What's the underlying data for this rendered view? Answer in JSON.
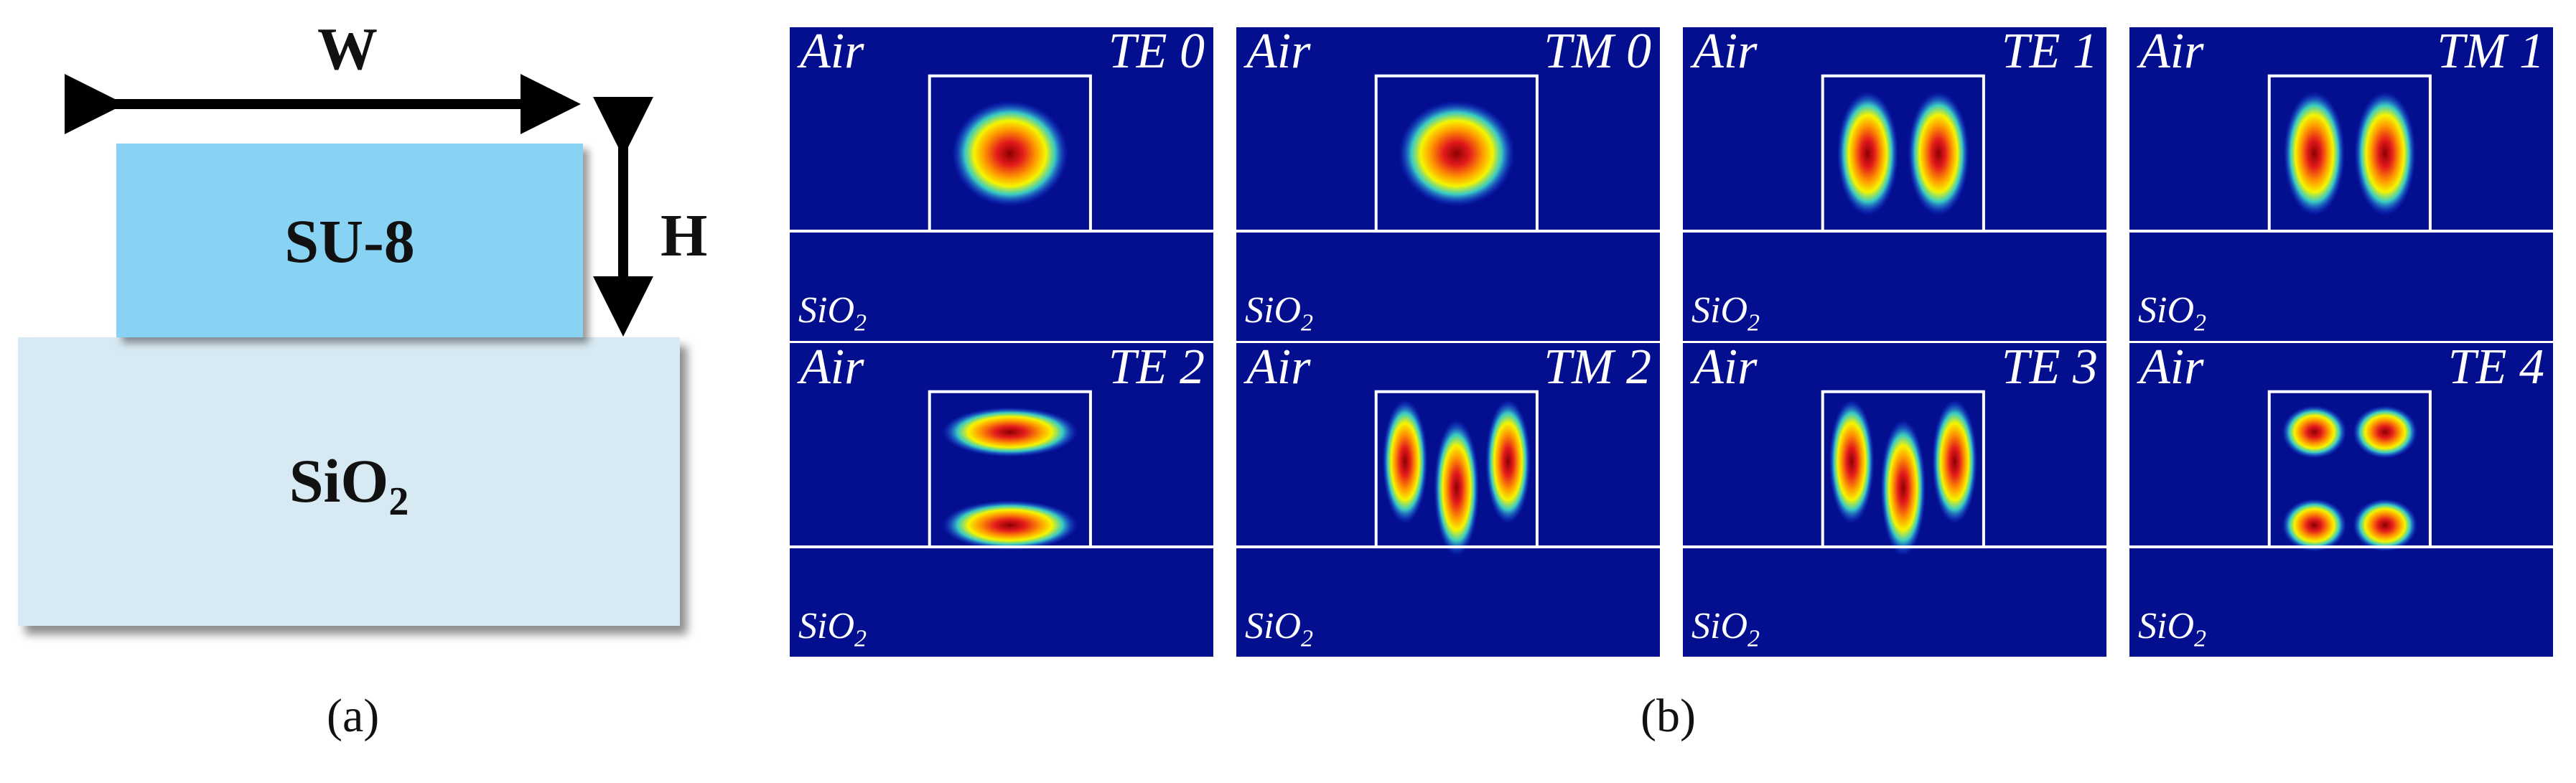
{
  "panel_a": {
    "width_label": "W",
    "height_label": "H",
    "core_label": "SU-8",
    "substrate_label": "SiO",
    "substrate_subscript": "2",
    "colors": {
      "core": "#88d2f3",
      "substrate": "#d7e9f2"
    }
  },
  "panel_b": {
    "air_label": "Air",
    "substrate_label": "SiO",
    "substrate_subscript": "2",
    "modes": [
      {
        "name": "TE0",
        "lobes": "1x1"
      },
      {
        "name": "TM0",
        "lobes": "1x1"
      },
      {
        "name": "TE1",
        "lobes": "2x1"
      },
      {
        "name": "TM1",
        "lobes": "2x1"
      },
      {
        "name": "TE2",
        "lobes": "1x2"
      },
      {
        "name": "TM2",
        "lobes": "3x1"
      },
      {
        "name": "TE3",
        "lobes": "3x1"
      },
      {
        "name": "TE4",
        "lobes": "2x2"
      }
    ],
    "colors": {
      "background": "#030f8f",
      "boundary": "#ffffff"
    }
  },
  "captions": {
    "a": "(a)",
    "b": "(b)"
  }
}
